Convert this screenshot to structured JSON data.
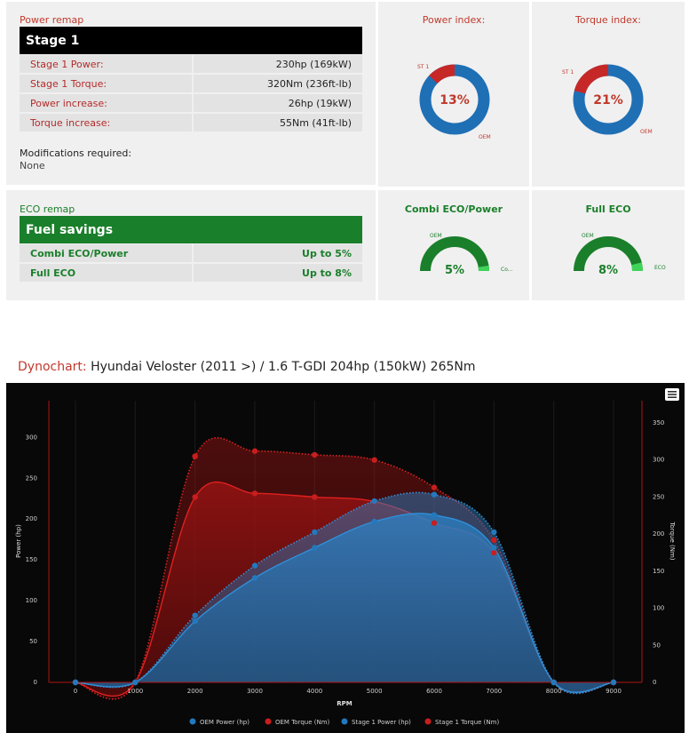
{
  "power_remap": {
    "title": "Power remap",
    "stage": "Stage 1",
    "rows": [
      {
        "label": "Stage 1 Power:",
        "value": "230hp (169kW)"
      },
      {
        "label": "Stage 1 Torque:",
        "value": "320Nm (236ft-lb)"
      },
      {
        "label": "Power increase:",
        "value": "26hp (19kW)"
      },
      {
        "label": "Torque increase:",
        "value": "55Nm (41ft-lb)"
      }
    ],
    "mods_label": "Modifications required:",
    "mods_value": "None"
  },
  "power_index": {
    "title": "Power index:",
    "value": "13%",
    "percent": 13,
    "label_stage": "ST 1",
    "label_oem": "OEM"
  },
  "torque_index": {
    "title": "Torque index:",
    "value": "21%",
    "percent": 21,
    "label_stage": "ST 1",
    "label_oem": "OEM"
  },
  "eco_remap": {
    "title": "ECO remap",
    "header": "Fuel savings",
    "rows": [
      {
        "label": "Combi ECO/Power",
        "value": "Up to 5%"
      },
      {
        "label": "Full ECO",
        "value": "Up to 8%"
      }
    ]
  },
  "combi_gauge": {
    "title": "Combi ECO/Power",
    "value": "5%",
    "percent": 5,
    "label_oem": "OEM",
    "label_other": "Co..."
  },
  "full_gauge": {
    "title": "Full ECO",
    "value": "8%",
    "percent": 8,
    "label_oem": "OEM",
    "label_other": "ECO"
  },
  "dyno": {
    "label": "Dynochart:",
    "title": "Hyundai Veloster (2011 >) / 1.6 T-GDI 204hp (150kW) 265Nm"
  },
  "colors": {
    "red": "#c0392b",
    "green": "#1a7f2a",
    "blue": "#1f6fb5",
    "chart_red": "#c81e1e",
    "chart_blue": "#2379bd"
  },
  "chart_data": {
    "type": "area",
    "xlabel": "RPM",
    "ylabel": "Power (hp)",
    "y2label": "Torque (Nm)",
    "x": [
      0,
      1000,
      2000,
      3000,
      4000,
      5000,
      6000,
      7000,
      8000,
      9000
    ],
    "xlim": [
      0,
      9000
    ],
    "ylim": [
      0,
      345
    ],
    "y2lim": [
      0,
      380
    ],
    "yticks": [
      0,
      50,
      100,
      150,
      200,
      250,
      300
    ],
    "y2ticks": [
      0,
      50,
      100,
      150,
      200,
      250,
      300,
      350
    ],
    "legend": "bottom",
    "series": [
      {
        "name": "OEM Power (hp)",
        "axis": "left",
        "values": [
          0,
          0,
          75,
          128,
          165,
          197,
          205,
          165,
          0,
          0
        ]
      },
      {
        "name": "OEM Torque (Nm)",
        "axis": "right",
        "values": [
          0,
          0,
          250,
          255,
          250,
          244,
          215,
          175,
          0,
          0
        ]
      },
      {
        "name": "Stage 1 Power (hp)",
        "axis": "left",
        "values": [
          0,
          0,
          82,
          143,
          184,
          222,
          230,
          184,
          0,
          0
        ]
      },
      {
        "name": "Stage 1 Torque (Nm)",
        "axis": "right",
        "values": [
          0,
          0,
          305,
          312,
          307,
          300,
          263,
          192,
          0,
          0
        ]
      }
    ]
  }
}
